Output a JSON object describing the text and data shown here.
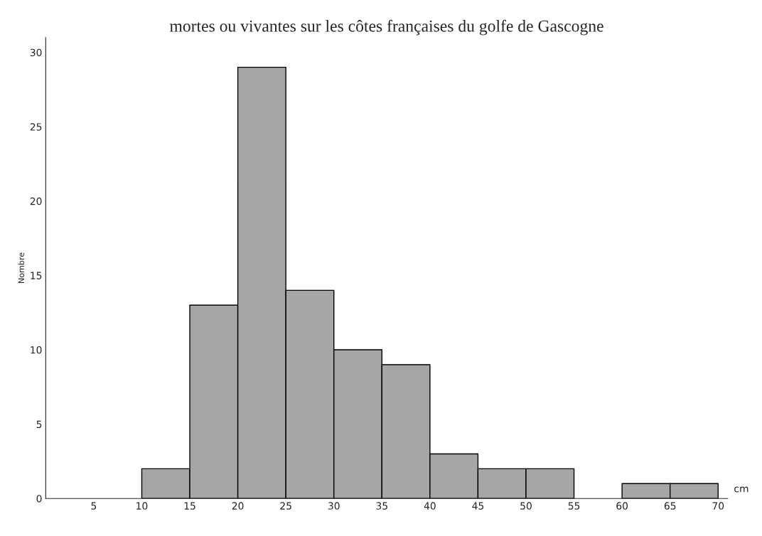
{
  "chart_data": {
    "type": "histogram",
    "title": "mortes ou vivantes sur les côtes françaises du golfe de Gascogne",
    "xlabel": "cm",
    "ylabel": "Nombre",
    "bins": [
      10,
      15,
      20,
      25,
      30,
      35,
      40,
      45,
      50,
      55,
      60,
      65,
      70
    ],
    "values": [
      2,
      13,
      29,
      14,
      10,
      9,
      3,
      2,
      2,
      0,
      1,
      1
    ],
    "color": "#a6a6a6",
    "xlim": [
      0,
      71
    ],
    "xticks": [
      5,
      10,
      15,
      20,
      25,
      30,
      35,
      40,
      45,
      50,
      55,
      60,
      65,
      70
    ],
    "ylim": [
      0,
      31
    ],
    "yticks": [
      0,
      5,
      10,
      15,
      20,
      25,
      30
    ],
    "grid": false
  }
}
